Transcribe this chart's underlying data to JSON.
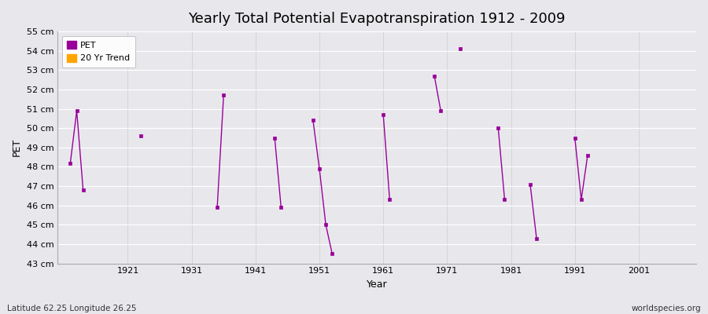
{
  "title": "Yearly Total Potential Evapotranspiration 1912 - 2009",
  "xlabel": "Year",
  "ylabel": "PET",
  "subtitle_lat": "Latitude 62.25 Longitude 26.25",
  "watermark": "worldspecies.org",
  "ylim": [
    43,
    55
  ],
  "xlim": [
    1910,
    2010
  ],
  "ytick_labels": [
    "43 cm",
    "44 cm",
    "45 cm",
    "46 cm",
    "47 cm",
    "48 cm",
    "49 cm",
    "50 cm",
    "51 cm",
    "52 cm",
    "53 cm",
    "54 cm",
    "55 cm"
  ],
  "ytick_values": [
    43,
    44,
    45,
    46,
    47,
    48,
    49,
    50,
    51,
    52,
    53,
    54,
    55
  ],
  "xtick_values": [
    1921,
    1931,
    1941,
    1951,
    1961,
    1971,
    1981,
    1991,
    2001
  ],
  "pet_color": "#990099",
  "trend_color": "#FFA500",
  "background_color": "#E8E8EC",
  "legend_pet": "PET",
  "legend_trend": "20 Yr Trend",
  "clusters": [
    [
      [
        1912,
        48.2
      ],
      [
        1913,
        50.9
      ],
      [
        1914,
        46.8
      ]
    ],
    [
      [
        1923,
        49.6
      ]
    ],
    [
      [
        1935,
        45.9
      ],
      [
        1936,
        51.7
      ]
    ],
    [
      [
        1944,
        49.5
      ],
      [
        1945,
        45.9
      ]
    ],
    [
      [
        1950,
        50.4
      ],
      [
        1951,
        47.9
      ],
      [
        1952,
        45.0
      ],
      [
        1953,
        43.5
      ]
    ],
    [
      [
        1961,
        50.7
      ],
      [
        1962,
        46.3
      ]
    ],
    [
      [
        1969,
        52.7
      ],
      [
        1970,
        50.9
      ]
    ],
    [
      [
        1973,
        54.1
      ]
    ],
    [
      [
        1979,
        50.0
      ],
      [
        1980,
        46.3
      ]
    ],
    [
      [
        1984,
        47.1
      ],
      [
        1985,
        44.3
      ]
    ],
    [
      [
        1991,
        49.5
      ],
      [
        1992,
        46.3
      ],
      [
        1993,
        48.6
      ]
    ]
  ]
}
